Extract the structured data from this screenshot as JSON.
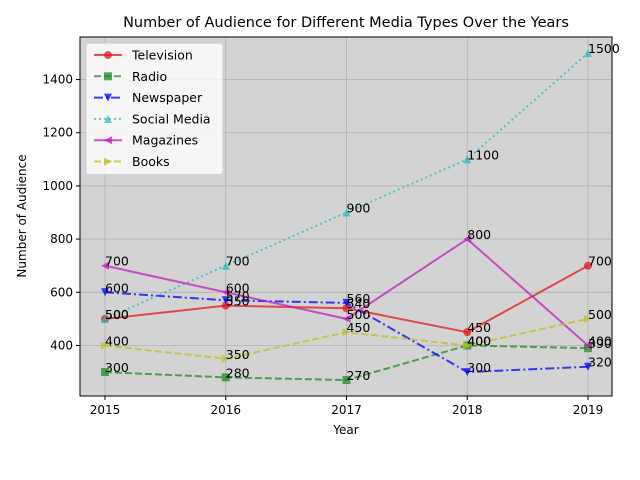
{
  "chart_data": {
    "type": "line",
    "title": "Number of Audience for Different Media Types Over the Years",
    "xlabel": "Year",
    "ylabel": "Number of Audience",
    "categories": [
      "2015",
      "2016",
      "2017",
      "2018",
      "2019"
    ],
    "ylim": [
      210,
      1560
    ],
    "yticks": [
      400,
      600,
      800,
      1000,
      1200,
      1400
    ],
    "grid": true,
    "legend_position": "upper left",
    "background_color": "#d3d3d3",
    "series": [
      {
        "name": "Television",
        "values": [
          500,
          550,
          540,
          450,
          700
        ],
        "color": "#e31a1c",
        "dash": "solid",
        "marker": "circle"
      },
      {
        "name": "Radio",
        "values": [
          300,
          280,
          270,
          400,
          390
        ],
        "color": "#228b22",
        "dash": "dashed",
        "marker": "square"
      },
      {
        "name": "Newspaper",
        "values": [
          600,
          570,
          560,
          300,
          320
        ],
        "color": "#0000ff",
        "dash": "dashdot",
        "marker": "triangle-down"
      },
      {
        "name": "Social Media",
        "values": [
          500,
          700,
          900,
          1100,
          1500
        ],
        "color": "#1fbfbf",
        "dash": "dotted",
        "marker": "triangle-up"
      },
      {
        "name": "Magazines",
        "values": [
          700,
          600,
          500,
          800,
          400
        ],
        "color": "#bf1fbf",
        "dash": "solid",
        "marker": "triangle-left"
      },
      {
        "name": "Books",
        "values": [
          400,
          350,
          450,
          400,
          500
        ],
        "color": "#bfbf1f",
        "dash": "dashed",
        "marker": "triangle-right"
      }
    ]
  }
}
